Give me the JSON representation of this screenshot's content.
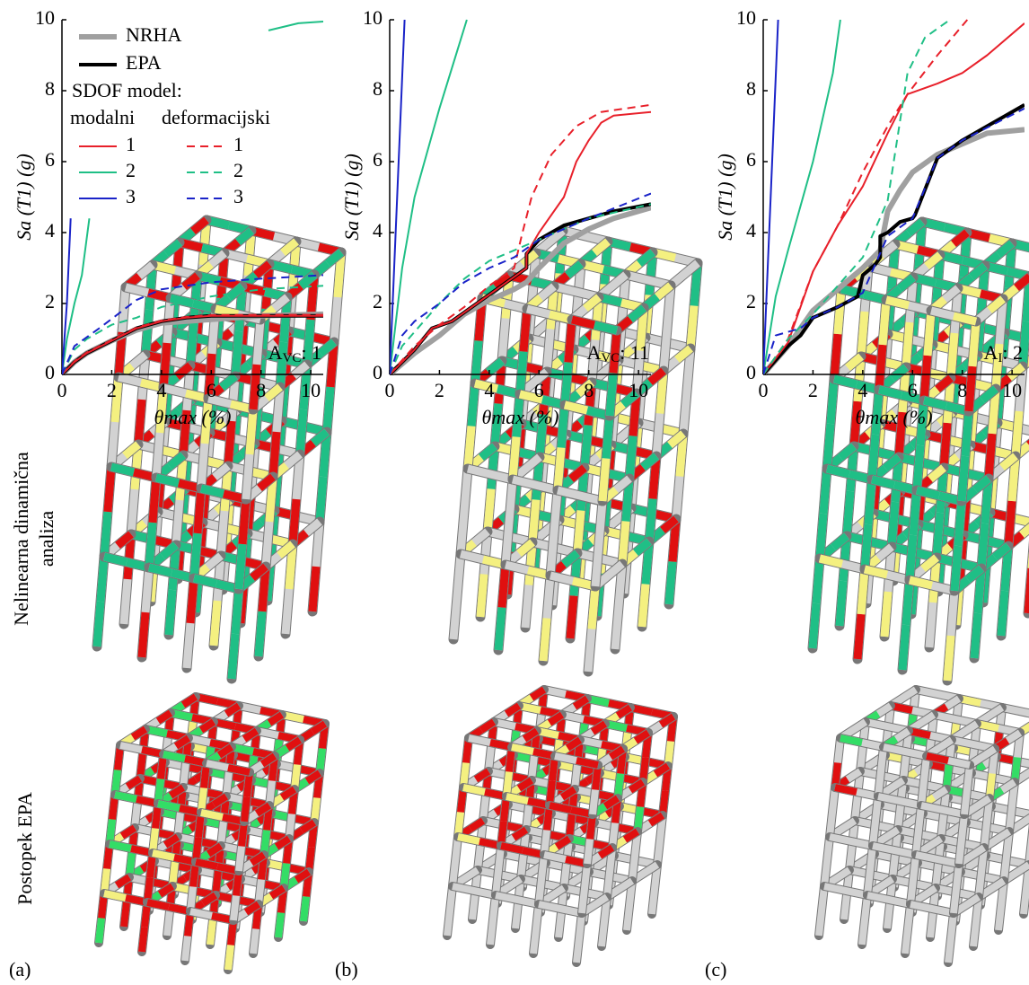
{
  "chart_data": [
    {
      "type": "line",
      "ylabel": "Sa (T1) (g)",
      "xlabel": "θmax (%)",
      "annotation": {
        "main": "A",
        "sub": "VC",
        "rest": ": 1"
      },
      "xlim": [
        0,
        10.5
      ],
      "xticks": [
        0,
        2,
        4,
        6,
        8,
        10
      ],
      "ylim": [
        0,
        10
      ],
      "yticks": [
        0,
        2,
        4,
        6,
        8,
        10
      ],
      "legend": {
        "title": "SDOF model:",
        "columns": [
          "modalni",
          "deformacijski"
        ]
      },
      "series": [
        {
          "name": "NRHA",
          "color": "#a0a0a0",
          "width": 6,
          "dash": false,
          "x": [
            0,
            0.5,
            1,
            2,
            3,
            4,
            6,
            8,
            10.5
          ],
          "values": [
            0,
            0.35,
            0.6,
            0.95,
            1.25,
            1.45,
            1.55,
            1.65,
            1.7
          ]
        },
        {
          "name": "EPA",
          "color": "#000000",
          "width": 4,
          "dash": false,
          "x": [
            0,
            0.5,
            1,
            2,
            3,
            4,
            5,
            6,
            8,
            10.5
          ],
          "values": [
            0,
            0.35,
            0.6,
            0.95,
            1.3,
            1.5,
            1.6,
            1.65,
            1.65,
            1.65
          ]
        },
        {
          "name": "1",
          "color": "#e8202a",
          "width": 2,
          "dash": false,
          "x": [
            0,
            0.5,
            1,
            2,
            3,
            4,
            5,
            6,
            8,
            10.5
          ],
          "values": [
            0,
            0.35,
            0.6,
            0.95,
            1.3,
            1.5,
            1.6,
            1.65,
            1.65,
            1.65
          ]
        },
        {
          "name": "2",
          "color": "#1fbf86",
          "width": 2,
          "dash": false,
          "x": [
            0,
            0.2,
            0.5,
            0.8,
            1.1,
            null,
            8.3,
            9.5,
            10.5
          ],
          "values": [
            0,
            1,
            2,
            2.8,
            4.4,
            null,
            9.7,
            9.9,
            9.95
          ]
        },
        {
          "name": "3",
          "color": "#1a23c8",
          "width": 2,
          "dash": false,
          "x": [
            0,
            0.2,
            0.35
          ],
          "values": [
            0,
            2,
            4.4
          ]
        },
        {
          "name": "1",
          "color": "#e8202a",
          "width": 2,
          "dash": true,
          "x": [
            0,
            0.5,
            1,
            2,
            3,
            4,
            5,
            6,
            8,
            10.5
          ],
          "values": [
            0,
            0.37,
            0.62,
            0.97,
            1.32,
            1.52,
            1.62,
            1.67,
            1.68,
            1.68
          ]
        },
        {
          "name": "2",
          "color": "#1fbf86",
          "width": 2,
          "dash": true,
          "x": [
            0,
            0.5,
            1,
            2,
            3,
            4,
            6,
            8,
            10.5
          ],
          "values": [
            0,
            0.7,
            1.0,
            1.4,
            1.6,
            1.9,
            2.2,
            2.4,
            2.5
          ]
        },
        {
          "name": "3",
          "color": "#1a23c8",
          "width": 2,
          "dash": true,
          "x": [
            0,
            0.5,
            1.5,
            3,
            4,
            6,
            8,
            10.5
          ],
          "values": [
            0,
            0.8,
            1.3,
            2.1,
            2.4,
            2.6,
            2.7,
            2.8
          ]
        }
      ]
    },
    {
      "type": "line",
      "ylabel": "Sa (T1) (g)",
      "xlabel": "θmax (%)",
      "annotation": {
        "main": "A",
        "sub": "VC",
        "rest": ": 11"
      },
      "xlim": [
        0,
        10.5
      ],
      "xticks": [
        0,
        2,
        4,
        6,
        8,
        10
      ],
      "ylim": [
        0,
        10
      ],
      "yticks": [
        0,
        2,
        4,
        6,
        8,
        10
      ],
      "series": [
        {
          "color": "#a0a0a0",
          "width": 6,
          "dash": false,
          "x": [
            0,
            1,
            2,
            3,
            4,
            5,
            5.5,
            6,
            7,
            8,
            9,
            10.5
          ],
          "values": [
            0,
            0.6,
            1.1,
            1.7,
            2.1,
            2.4,
            2.6,
            3,
            3.7,
            4.1,
            4.4,
            4.7
          ]
        },
        {
          "color": "#000000",
          "width": 4,
          "dash": false,
          "x": [
            0,
            1,
            1.7,
            2.5,
            3.5,
            4.5,
            5.3,
            5.5,
            5.5,
            6,
            7,
            8,
            9,
            10.5
          ],
          "values": [
            0,
            0.7,
            1.3,
            1.5,
            2,
            2.5,
            2.9,
            3,
            3.4,
            3.8,
            4.2,
            4.4,
            4.6,
            4.8
          ]
        },
        {
          "color": "#e8202a",
          "width": 2,
          "dash": false,
          "x": [
            0,
            1,
            1.7,
            2.5,
            3.5,
            4.5,
            5.3,
            5.5,
            5.5,
            6,
            7,
            7.5,
            8,
            8.5,
            9,
            10.5
          ],
          "values": [
            0,
            0.7,
            1.3,
            1.5,
            2,
            2.5,
            2.9,
            3,
            3.4,
            4,
            5,
            6,
            6.6,
            7.1,
            7.3,
            7.4
          ]
        },
        {
          "color": "#1fbf86",
          "width": 2,
          "dash": false,
          "x": [
            0,
            0.5,
            1,
            2,
            3.1
          ],
          "values": [
            0,
            3,
            5,
            7.5,
            10
          ]
        },
        {
          "color": "#1a23c8",
          "width": 2,
          "dash": false,
          "x": [
            0,
            0.3,
            0.6
          ],
          "values": [
            0,
            5,
            10
          ]
        },
        {
          "color": "#e8202a",
          "width": 2,
          "dash": true,
          "x": [
            0,
            1,
            2,
            3,
            4,
            5,
            5.3,
            5.7,
            6.5,
            7.5,
            8.5,
            10.5
          ],
          "values": [
            0,
            0.8,
            1.4,
            1.9,
            2.5,
            3,
            3.9,
            5,
            6.2,
            7,
            7.4,
            7.6
          ]
        },
        {
          "color": "#1fbf86",
          "width": 2,
          "dash": true,
          "x": [
            0,
            0.5,
            1,
            2,
            3,
            4,
            5,
            6,
            8,
            10.5
          ],
          "values": [
            0,
            0.8,
            1.2,
            2,
            2.7,
            3.2,
            3.5,
            3.8,
            4.4,
            4.8
          ]
        },
        {
          "color": "#1a23c8",
          "width": 2,
          "dash": true,
          "x": [
            0,
            0.5,
            1,
            2,
            3,
            4,
            5,
            6,
            8,
            10.5
          ],
          "values": [
            0,
            1.1,
            1.5,
            2,
            2.6,
            3,
            3.3,
            3.8,
            4.4,
            5.1
          ]
        }
      ]
    },
    {
      "type": "line",
      "ylabel": "Sa (T1) (g)",
      "xlabel": "θmax (%)",
      "annotation": {
        "main": "A",
        "sub": "I",
        "rest": ": 2"
      },
      "xlim": [
        0,
        10.5
      ],
      "xticks": [
        0,
        2,
        4,
        6,
        8,
        10
      ],
      "ylim": [
        0,
        10
      ],
      "yticks": [
        0,
        2,
        4,
        6,
        8,
        10
      ],
      "series": [
        {
          "color": "#a0a0a0",
          "width": 6,
          "dash": false,
          "x": [
            0,
            1,
            2,
            3,
            4,
            4.7,
            5,
            5.5,
            6,
            7,
            8,
            9,
            10.5
          ],
          "values": [
            0,
            0.8,
            1.8,
            2.4,
            3,
            3.5,
            4.6,
            5.2,
            5.7,
            6.2,
            6.5,
            6.8,
            6.9
          ]
        },
        {
          "color": "#000000",
          "width": 4,
          "dash": false,
          "x": [
            0,
            1,
            1.5,
            2,
            3,
            3.8,
            4,
            4.5,
            4.7,
            4.7,
            5,
            5.5,
            6,
            6.1,
            7,
            8,
            9,
            10.5
          ],
          "values": [
            0,
            0.8,
            1.1,
            1.6,
            1.9,
            2.2,
            2.8,
            3.1,
            3.3,
            3.9,
            4,
            4.3,
            4.4,
            4.5,
            6.1,
            6.6,
            7.0,
            7.6
          ]
        },
        {
          "color": "#e8202a",
          "width": 2,
          "dash": false,
          "x": [
            0,
            1,
            2,
            3,
            4,
            5,
            5.8,
            7,
            8,
            9,
            10.5
          ],
          "values": [
            0,
            0.9,
            2.9,
            4.2,
            5.3,
            6.8,
            7.9,
            8.2,
            8.5,
            9,
            9.9
          ]
        },
        {
          "color": "#1fbf86",
          "width": 2,
          "dash": false,
          "x": [
            0,
            0.5,
            1,
            2,
            2.8,
            3.1
          ],
          "values": [
            0,
            2.2,
            3.5,
            6,
            8.5,
            10
          ]
        },
        {
          "color": "#1a23c8",
          "width": 2,
          "dash": false,
          "x": [
            0,
            0.3,
            0.6
          ],
          "values": [
            0,
            5,
            10
          ]
        },
        {
          "color": "#e8202a",
          "width": 2,
          "dash": true,
          "x": [
            0,
            1,
            2,
            3,
            4,
            5,
            5.8,
            7,
            8.2
          ],
          "values": [
            0,
            1,
            2.9,
            4.2,
            5.7,
            7,
            7.9,
            9,
            10
          ]
        },
        {
          "color": "#1fbf86",
          "width": 2,
          "dash": true,
          "x": [
            0,
            1,
            2,
            3,
            4,
            5,
            5.8,
            6.5,
            7.5
          ],
          "values": [
            0,
            1,
            1.7,
            2.5,
            3.3,
            4.9,
            8.5,
            9.5,
            10
          ]
        },
        {
          "color": "#1a23c8",
          "width": 2,
          "dash": true,
          "x": [
            0,
            0.5,
            1.5,
            2,
            3,
            4,
            5,
            6,
            7,
            8,
            10.5
          ],
          "values": [
            0,
            1.1,
            1.3,
            1.6,
            1.9,
            2.3,
            3.9,
            4.4,
            6.1,
            6.6,
            7.5
          ]
        }
      ]
    }
  ],
  "figure": {
    "row_labels": [
      [
        "Nelinearna dinamična",
        "analiza"
      ],
      [
        "Postopek EPA"
      ]
    ],
    "panel_labels": [
      "(a)",
      "(b)",
      "(c)"
    ]
  }
}
